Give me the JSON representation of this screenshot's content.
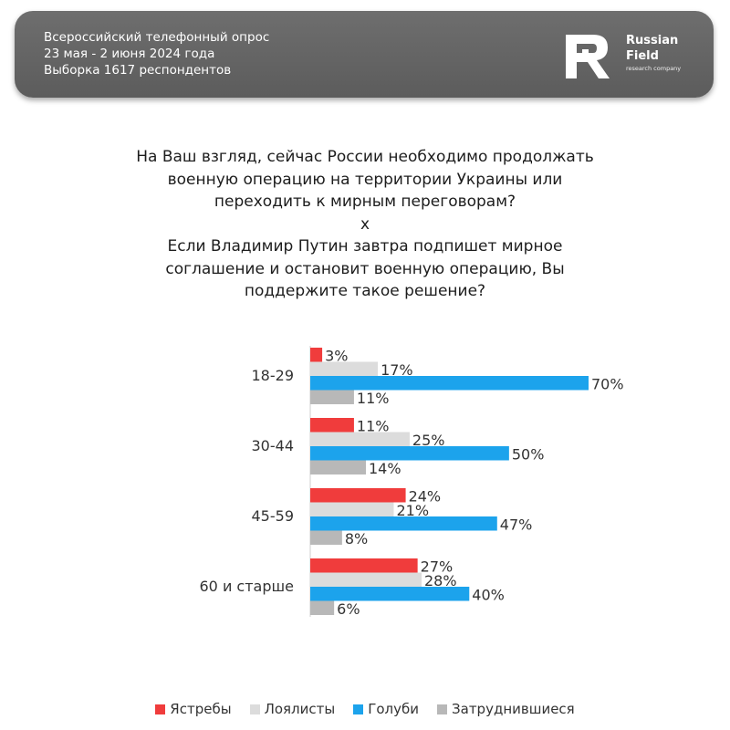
{
  "header": {
    "line1": "Всероссийский телефонный опрос",
    "line2": "23 мая - 2 июня 2024 года",
    "line3": "Выборка 1617 респондентов",
    "logo_line1": "Russian",
    "logo_line2": "Field",
    "logo_sub": "research company"
  },
  "question": {
    "line1": "На Ваш взгляд, сейчас России необходимо продолжать",
    "line2": "военную операцию на территории Украины или",
    "line3": "переходить к мирным переговорам?",
    "separator": "x",
    "line4": "Если Владимир Путин завтра подпишет мирное",
    "line5": "соглашение и остановит военную операцию, Вы",
    "line6": "поддержите такое решение?"
  },
  "chart_data": {
    "type": "bar",
    "orientation": "horizontal",
    "categories": [
      "18-29",
      "30-44",
      "45-59",
      "60 и старше"
    ],
    "series": [
      {
        "name": "Ястребы",
        "color": "#f03c3c",
        "values": [
          3,
          11,
          24,
          27
        ]
      },
      {
        "name": "Лоялисты",
        "color": "#dcdcdc",
        "values": [
          17,
          25,
          21,
          28
        ]
      },
      {
        "name": "Голуби",
        "color": "#1ca3ec",
        "values": [
          70,
          50,
          47,
          40
        ]
      },
      {
        "name": "Затруднившиеся",
        "color": "#b8b8b8",
        "values": [
          11,
          14,
          8,
          6
        ]
      }
    ],
    "value_suffix": "%",
    "xlim": [
      0,
      70
    ],
    "legend": "bottom",
    "grid": false
  }
}
